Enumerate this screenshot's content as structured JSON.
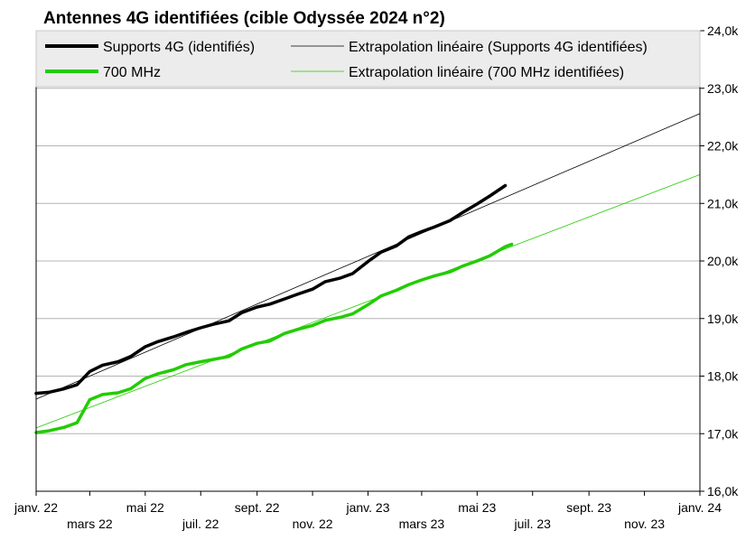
{
  "chart_data": {
    "type": "line",
    "title": "Antennes 4G identifiées (cible Odyssée 2024 n°2)",
    "xlabel": "",
    "ylabel": "",
    "x_range": [
      "2022-01-01",
      "2024-01-01"
    ],
    "ylim": [
      16000,
      24000
    ],
    "y_axis_position": "right",
    "y_ticks": [
      "16,0k",
      "17,0k",
      "18,0k",
      "19,0k",
      "20,0k",
      "21,0k",
      "22,0k",
      "23,0k",
      "24,0k"
    ],
    "y_tick_values": [
      16000,
      17000,
      18000,
      19000,
      20000,
      21000,
      22000,
      23000,
      24000
    ],
    "x_ticks_row1": [
      {
        "label": "janv. 22",
        "date": "2022-01-01"
      },
      {
        "label": "mai 22",
        "date": "2022-05-01"
      },
      {
        "label": "sept. 22",
        "date": "2022-09-01"
      },
      {
        "label": "janv. 23",
        "date": "2023-01-01"
      },
      {
        "label": "mai 23",
        "date": "2023-05-01"
      },
      {
        "label": "sept. 23",
        "date": "2023-09-01"
      },
      {
        "label": "janv. 24",
        "date": "2024-01-01"
      }
    ],
    "x_ticks_row2": [
      {
        "label": "mars 22",
        "date": "2022-03-01"
      },
      {
        "label": "juil. 22",
        "date": "2022-07-01"
      },
      {
        "label": "nov. 22",
        "date": "2022-11-01"
      },
      {
        "label": "mars 23",
        "date": "2023-03-01"
      },
      {
        "label": "juil. 23",
        "date": "2023-07-01"
      },
      {
        "label": "nov. 23",
        "date": "2023-11-01"
      }
    ],
    "grid": "horizontal",
    "legend_position": "top",
    "series": [
      {
        "name": "Supports 4G (identifiés)",
        "color": "#000000",
        "style": "thick",
        "points": [
          [
            "2022-01-01",
            17700
          ],
          [
            "2022-01-15",
            17720
          ],
          [
            "2022-02-01",
            17780
          ],
          [
            "2022-02-15",
            17850
          ],
          [
            "2022-03-01",
            18080
          ],
          [
            "2022-03-15",
            18190
          ],
          [
            "2022-04-01",
            18250
          ],
          [
            "2022-04-15",
            18340
          ],
          [
            "2022-05-01",
            18510
          ],
          [
            "2022-05-15",
            18600
          ],
          [
            "2022-06-01",
            18680
          ],
          [
            "2022-06-15",
            18760
          ],
          [
            "2022-07-01",
            18840
          ],
          [
            "2022-07-15",
            18900
          ],
          [
            "2022-08-01",
            18960
          ],
          [
            "2022-08-15",
            19100
          ],
          [
            "2022-09-01",
            19200
          ],
          [
            "2022-09-15",
            19250
          ],
          [
            "2022-10-01",
            19340
          ],
          [
            "2022-10-15",
            19420
          ],
          [
            "2022-11-01",
            19510
          ],
          [
            "2022-11-15",
            19640
          ],
          [
            "2022-12-01",
            19700
          ],
          [
            "2022-12-15",
            19780
          ],
          [
            "2023-01-01",
            19990
          ],
          [
            "2023-01-15",
            20150
          ],
          [
            "2023-02-01",
            20260
          ],
          [
            "2023-02-15",
            20420
          ],
          [
            "2023-03-01",
            20510
          ],
          [
            "2023-03-15",
            20590
          ],
          [
            "2023-04-01",
            20700
          ],
          [
            "2023-04-15",
            20840
          ],
          [
            "2023-05-01",
            20990
          ],
          [
            "2023-05-15",
            21130
          ],
          [
            "2023-06-01",
            21310
          ]
        ]
      },
      {
        "name": "700 MHz",
        "color": "#22cc00",
        "style": "thick",
        "points": [
          [
            "2022-01-01",
            17020
          ],
          [
            "2022-01-15",
            17050
          ],
          [
            "2022-02-01",
            17110
          ],
          [
            "2022-02-15",
            17190
          ],
          [
            "2022-03-01",
            17590
          ],
          [
            "2022-03-15",
            17680
          ],
          [
            "2022-04-01",
            17710
          ],
          [
            "2022-04-15",
            17780
          ],
          [
            "2022-05-01",
            17960
          ],
          [
            "2022-05-15",
            18040
          ],
          [
            "2022-06-01",
            18110
          ],
          [
            "2022-06-15",
            18200
          ],
          [
            "2022-07-01",
            18250
          ],
          [
            "2022-07-15",
            18290
          ],
          [
            "2022-08-01",
            18340
          ],
          [
            "2022-08-15",
            18470
          ],
          [
            "2022-09-01",
            18570
          ],
          [
            "2022-09-15",
            18610
          ],
          [
            "2022-10-01",
            18740
          ],
          [
            "2022-10-15",
            18810
          ],
          [
            "2022-11-01",
            18880
          ],
          [
            "2022-11-15",
            18970
          ],
          [
            "2022-12-01",
            19020
          ],
          [
            "2022-12-15",
            19080
          ],
          [
            "2023-01-01",
            19240
          ],
          [
            "2023-01-15",
            19390
          ],
          [
            "2023-02-01",
            19490
          ],
          [
            "2023-02-15",
            19590
          ],
          [
            "2023-03-01",
            19670
          ],
          [
            "2023-03-15",
            19740
          ],
          [
            "2023-04-01",
            19810
          ],
          [
            "2023-04-15",
            19910
          ],
          [
            "2023-05-01",
            20000
          ],
          [
            "2023-05-15",
            20090
          ],
          [
            "2023-06-01",
            20250
          ],
          [
            "2023-06-08",
            20290
          ]
        ]
      },
      {
        "name": "Extrapolation linéaire (Supports 4G identifiées)",
        "color": "#000000",
        "style": "thin",
        "points": [
          [
            "2022-01-01",
            17600
          ],
          [
            "2024-01-01",
            22560
          ]
        ]
      },
      {
        "name": "Extrapolation linéaire (700 MHz identifiées)",
        "color": "#22cc00",
        "style": "thin",
        "points": [
          [
            "2022-01-01",
            17100
          ],
          [
            "2024-01-01",
            21500
          ]
        ]
      }
    ]
  }
}
